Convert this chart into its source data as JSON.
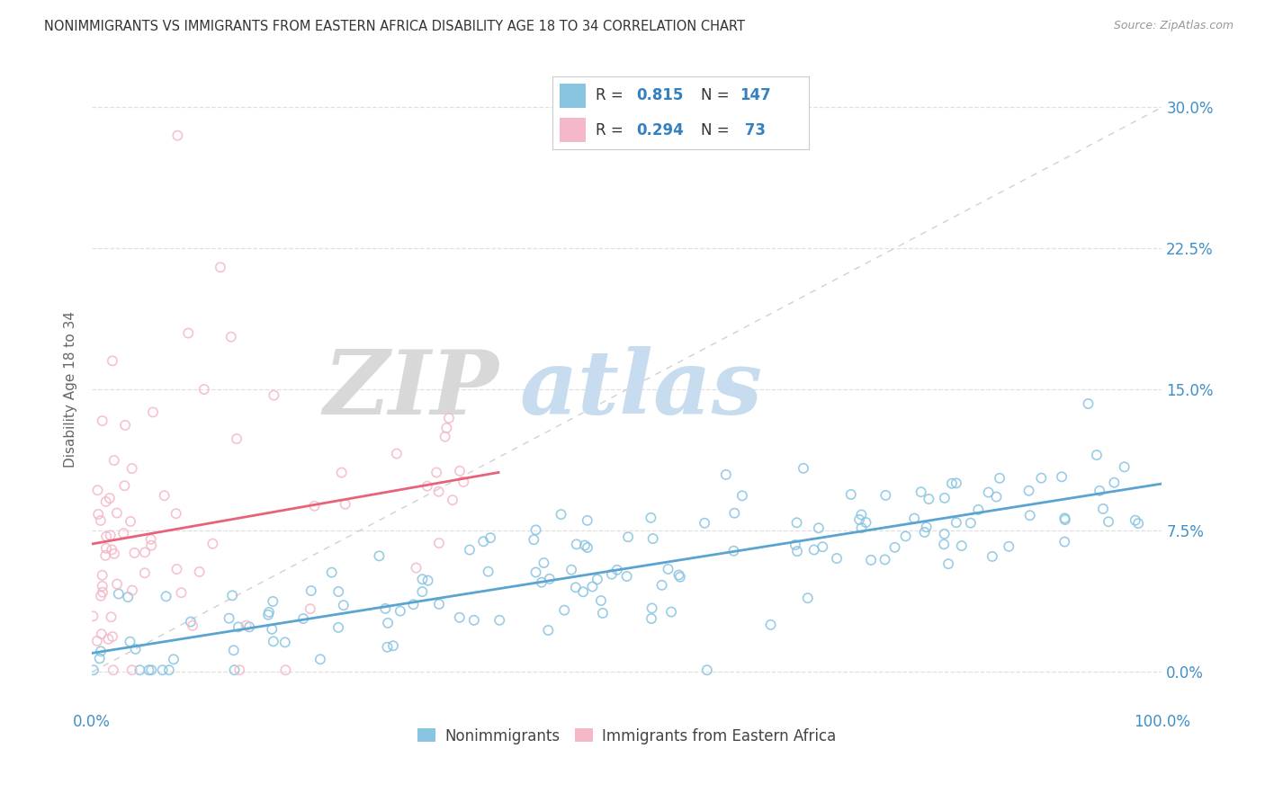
{
  "title": "NONIMMIGRANTS VS IMMIGRANTS FROM EASTERN AFRICA DISABILITY AGE 18 TO 34 CORRELATION CHART",
  "source": "Source: ZipAtlas.com",
  "ylabel": "Disability Age 18 to 34",
  "ytick_vals": [
    0.0,
    0.075,
    0.15,
    0.225,
    0.3
  ],
  "ytick_labels": [
    "0.0%",
    "7.5%",
    "15.0%",
    "22.5%",
    "30.0%"
  ],
  "xlim": [
    0.0,
    1.0
  ],
  "ylim": [
    -0.02,
    0.32
  ],
  "legend_r1": "0.815",
  "legend_n1": "147",
  "legend_r2": "0.294",
  "legend_n2": " 73",
  "color_blue": "#89c4e1",
  "color_pink": "#f4b8c8",
  "color_blue_line": "#5ba3d0",
  "color_pink_line": "#e8637a",
  "color_dashed_line": "#cccccc",
  "color_blue_text": "#3580c0",
  "background_color": "#ffffff",
  "grid_color": "#e0e0e0",
  "title_color": "#333333",
  "source_color": "#999999",
  "axis_label_color": "#4090c8",
  "scatter_alpha": 0.85,
  "scatter_size": 55
}
